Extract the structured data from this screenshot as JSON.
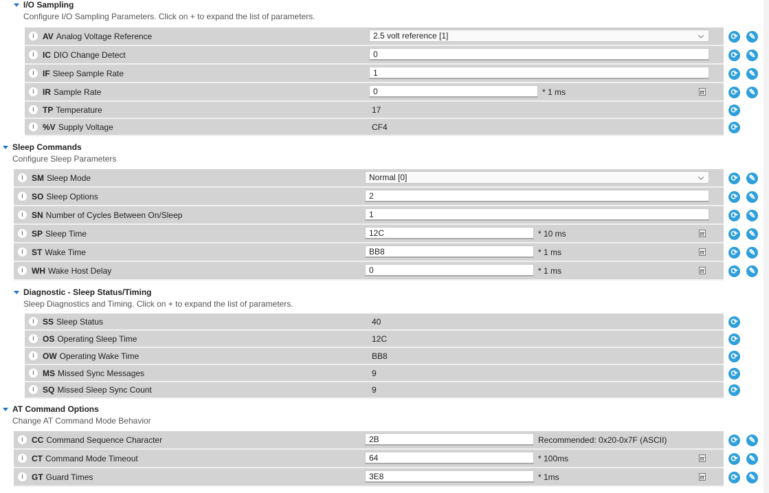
{
  "colors": {
    "accent": "#2e9fdb",
    "row_bg": "#d3d3d3"
  },
  "icons": {
    "info": "info-icon",
    "read": "refresh-icon",
    "write": "pencil-icon",
    "calc": "calculator-icon",
    "expand": "triangle-down-icon"
  },
  "sections": [
    {
      "title": "I/O Sampling",
      "description": "Configure I/O Sampling Parameters. Click on + to expand the list of parameters.",
      "rows": [
        {
          "code": "AV",
          "name": "Analog Voltage Reference",
          "type": "select",
          "value": "2.5 volt reference [1]",
          "write": true
        },
        {
          "code": "IC",
          "name": "DIO Change Detect",
          "type": "input",
          "value": "0",
          "write": true
        },
        {
          "code": "IF",
          "name": "Sleep Sample Rate",
          "type": "input",
          "value": "1",
          "write": true
        },
        {
          "code": "IR",
          "name": "Sample Rate",
          "type": "unit",
          "value": "0",
          "unit": "* 1 ms",
          "calc": true,
          "write": true
        },
        {
          "code": "TP",
          "name": "Temperature",
          "type": "readonly",
          "value": "17",
          "write": false
        },
        {
          "code": "%V",
          "name": "Supply Voltage",
          "type": "readonly",
          "value": "CF4",
          "write": false
        }
      ]
    },
    {
      "title": "Sleep Commands",
      "description": "Configure Sleep Parameters",
      "rows": [
        {
          "code": "SM",
          "name": "Sleep Mode",
          "type": "select",
          "value": "Normal [0]",
          "write": true
        },
        {
          "code": "SO",
          "name": "Sleep Options",
          "type": "input",
          "value": "2",
          "write": true
        },
        {
          "code": "SN",
          "name": "Number of Cycles Between On/Sleep",
          "type": "input",
          "value": "1",
          "write": true
        },
        {
          "code": "SP",
          "name": "Sleep Time",
          "type": "unit",
          "value": "12C",
          "unit": "* 10 ms",
          "calc": true,
          "write": true
        },
        {
          "code": "ST",
          "name": "Wake Time",
          "type": "unit",
          "value": "BB8",
          "unit": "* 1 ms",
          "calc": true,
          "write": true
        },
        {
          "code": "WH",
          "name": "Wake Host Delay",
          "type": "unit",
          "value": "0",
          "unit": "* 1 ms",
          "calc": true,
          "write": true
        }
      ]
    },
    {
      "title": "Diagnostic - Sleep Status/Timing",
      "description": "Sleep Diagnostics and Timing. Click on + to expand the list of parameters.",
      "rows": [
        {
          "code": "SS",
          "name": "Sleep Status",
          "type": "readonly",
          "value": "40",
          "write": false
        },
        {
          "code": "OS",
          "name": "Operating Sleep Time",
          "type": "readonly",
          "value": "12C",
          "write": false
        },
        {
          "code": "OW",
          "name": "Operating Wake Time",
          "type": "readonly",
          "value": "BB8",
          "write": false
        },
        {
          "code": "MS",
          "name": "Missed Sync Messages",
          "type": "readonly",
          "value": "9",
          "write": false
        },
        {
          "code": "SQ",
          "name": "Missed Sleep Sync Count",
          "type": "readonly",
          "value": "9",
          "write": false
        }
      ]
    },
    {
      "title": "AT Command Options",
      "description": "Change AT Command Mode Behavior",
      "rows": [
        {
          "code": "CC",
          "name": "Command Sequence Character",
          "type": "unit",
          "value": "2B",
          "unit": "Recommended: 0x20-0x7F (ASCII)",
          "calc": false,
          "write": true
        },
        {
          "code": "CT",
          "name": "Command Mode Timeout",
          "type": "unit",
          "value": "64",
          "unit": "* 100ms",
          "calc": true,
          "write": true
        },
        {
          "code": "GT",
          "name": "Guard Times",
          "type": "unit",
          "value": "3E8",
          "unit": "* 1ms",
          "calc": true,
          "write": true
        }
      ]
    }
  ]
}
